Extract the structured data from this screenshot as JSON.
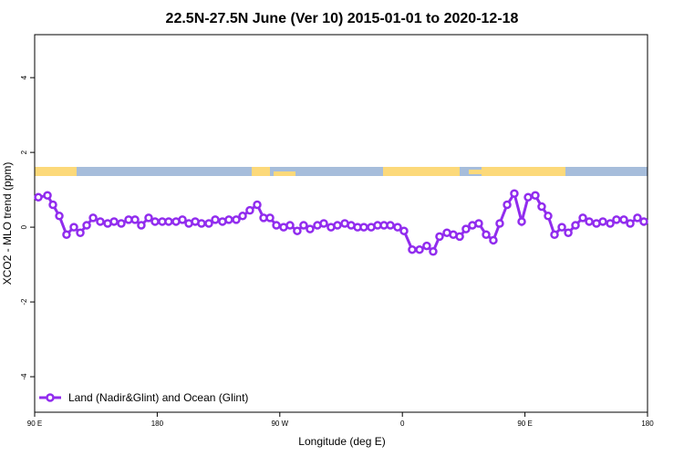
{
  "chart_data": {
    "type": "line",
    "title": "22.5N-27.5N June (Ver 10)   2015-01-01 to 2020-12-18",
    "xlabel": "Longitude (deg E)",
    "ylabel": "XCO2 - MLO trend (ppm)",
    "xlim": [
      90,
      540
    ],
    "ylim": [
      -4.95,
      5.15
    ],
    "xticks": [
      {
        "value": 90,
        "label": "90 E"
      },
      180,
      {
        "value": 270,
        "label": "90 W"
      },
      {
        "value": 360,
        "label": "0"
      },
      {
        "value": 450,
        "label": "90 E"
      },
      {
        "value": 540,
        "label": "180"
      }
    ],
    "yticks": [
      -4,
      -2,
      0,
      2,
      4
    ],
    "legend": "bottom-left",
    "x": [
      92.7,
      99.4,
      103.4,
      108.1,
      113.4,
      118.8,
      123.5,
      128.2,
      132.9,
      138.2,
      143.6,
      148.3,
      153.6,
      159.0,
      163.7,
      168.3,
      173.7,
      178.4,
      183.7,
      188.4,
      193.8,
      198.5,
      203.2,
      207.9,
      212.5,
      217.9,
      222.6,
      227.9,
      232.6,
      238.0,
      242.7,
      248.0,
      253.4,
      258.1,
      262.8,
      267.5,
      272.8,
      277.5,
      282.8,
      287.5,
      292.2,
      297.6,
      302.3,
      307.6,
      312.3,
      317.7,
      322.4,
      327.1,
      331.7,
      337.1,
      341.8,
      346.5,
      351.2,
      356.5,
      361.2,
      367.2,
      372.6,
      377.9,
      382.6,
      387.3,
      392.7,
      397.4,
      402.1,
      406.7,
      411.4,
      416.1,
      421.5,
      426.8,
      431.5,
      436.9,
      442.2,
      447.6,
      452.3,
      457.6,
      462.3,
      467.0,
      471.7,
      477.1,
      481.8,
      487.1,
      492.5,
      497.2,
      502.5,
      507.2,
      512.6,
      517.2,
      522.6,
      527.3,
      532.6,
      537.3
    ],
    "series": [
      {
        "name": "Land (Nadir&Glint) and Ocean (Glint)",
        "color": "#912cee",
        "values": [
          0.8,
          0.85,
          0.6,
          0.3,
          -0.2,
          0,
          -0.15,
          0.05,
          0.25,
          0.15,
          0.1,
          0.15,
          0.1,
          0.2,
          0.2,
          0.05,
          0.25,
          0.15,
          0.15,
          0.15,
          0.15,
          0.2,
          0.1,
          0.15,
          0.1,
          0.1,
          0.2,
          0.15,
          0.2,
          0.2,
          0.3,
          0.45,
          0.6,
          0.25,
          0.25,
          0.05,
          0,
          0.05,
          -0.1,
          0.05,
          -0.05,
          0.05,
          0.1,
          0,
          0.05,
          0.1,
          0.05,
          0,
          0,
          0,
          0.05,
          0.05,
          0.05,
          0,
          -0.1,
          -0.6,
          -0.6,
          -0.5,
          -0.65,
          -0.25,
          -0.15,
          -0.2,
          -0.25,
          -0.05,
          0.05,
          0.1,
          -0.2,
          -0.35,
          0.1,
          0.6,
          0.9,
          0.15,
          0.8,
          0.85,
          0.55,
          0.3,
          -0.2,
          0,
          -0.15,
          0.05,
          0.25,
          0.15,
          0.1,
          0.15,
          0.1,
          0.2,
          0.2,
          0.1,
          0.25,
          0.15
        ]
      }
    ]
  }
}
